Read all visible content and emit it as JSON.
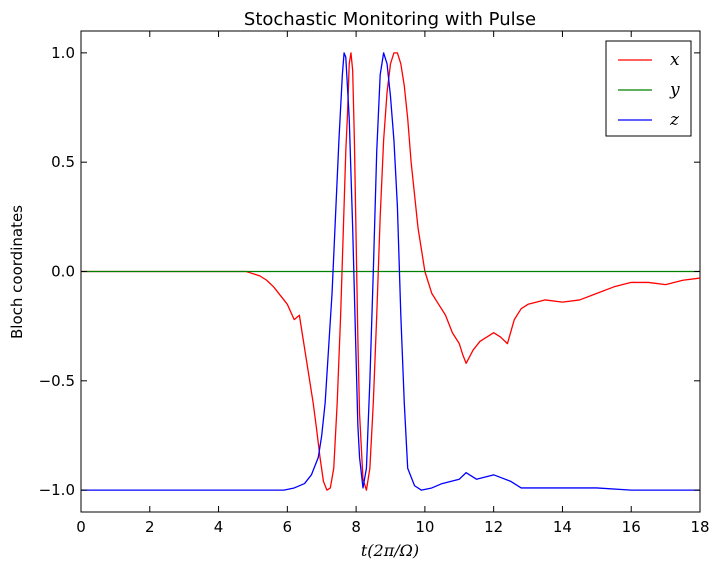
{
  "chart_data": {
    "type": "line",
    "title": "Stochastic Monitoring with Pulse",
    "xlabel": "t(2π/Ω)",
    "ylabel": "Bloch coordinates",
    "xlim": [
      0,
      18
    ],
    "ylim": [
      -1.1,
      1.1
    ],
    "xticks": [
      0,
      2,
      4,
      6,
      8,
      10,
      12,
      14,
      16,
      18
    ],
    "xtick_labels": [
      "0",
      "2",
      "4",
      "6",
      "8",
      "10",
      "12",
      "14",
      "16",
      "18"
    ],
    "yticks": [
      -1.0,
      -0.5,
      0.0,
      0.5,
      1.0
    ],
    "ytick_labels": [
      "−1.0",
      "−0.5",
      "0.0",
      "0.5",
      "1.0"
    ],
    "grid": false,
    "legend_position": "top-right",
    "series": [
      {
        "name": "x",
        "color": "#ff0000",
        "x": [
          0,
          1,
          2,
          3,
          4,
          4.8,
          5.0,
          5.2,
          5.4,
          5.6,
          5.8,
          6.0,
          6.2,
          6.35,
          6.45,
          6.6,
          6.75,
          6.85,
          6.95,
          7.05,
          7.15,
          7.25,
          7.35,
          7.45,
          7.55,
          7.65,
          7.7,
          7.75,
          7.8,
          7.85,
          7.9,
          7.95,
          8.0,
          8.05,
          8.1,
          8.2,
          8.3,
          8.4,
          8.5,
          8.6,
          8.7,
          8.8,
          8.9,
          9.0,
          9.1,
          9.2,
          9.3,
          9.4,
          9.5,
          9.6,
          9.7,
          9.8,
          9.9,
          10.0,
          10.2,
          10.4,
          10.6,
          10.8,
          11.0,
          11.1,
          11.2,
          11.4,
          11.6,
          11.8,
          12.0,
          12.2,
          12.4,
          12.6,
          12.8,
          13.0,
          13.5,
          14.0,
          14.5,
          15.0,
          15.5,
          16.0,
          16.5,
          17.0,
          17.5,
          18.0
        ],
        "y": [
          0.0,
          0.0,
          0.0,
          0.0,
          0.0,
          0.0,
          -0.01,
          -0.02,
          -0.04,
          -0.07,
          -0.11,
          -0.15,
          -0.22,
          -0.2,
          -0.3,
          -0.45,
          -0.6,
          -0.72,
          -0.85,
          -0.96,
          -1.0,
          -0.99,
          -0.9,
          -0.6,
          -0.2,
          0.3,
          0.55,
          0.72,
          0.95,
          1.0,
          0.92,
          0.6,
          0.15,
          -0.3,
          -0.65,
          -0.95,
          -1.0,
          -0.9,
          -0.6,
          -0.2,
          0.25,
          0.6,
          0.82,
          0.95,
          1.0,
          1.0,
          0.95,
          0.85,
          0.7,
          0.5,
          0.35,
          0.2,
          0.1,
          0.0,
          -0.1,
          -0.15,
          -0.2,
          -0.28,
          -0.33,
          -0.38,
          -0.42,
          -0.36,
          -0.32,
          -0.3,
          -0.28,
          -0.3,
          -0.33,
          -0.22,
          -0.17,
          -0.15,
          -0.13,
          -0.14,
          -0.13,
          -0.1,
          -0.07,
          -0.05,
          -0.05,
          -0.06,
          -0.04,
          -0.03
        ]
      },
      {
        "name": "y",
        "color": "#008000",
        "x": [
          0,
          18
        ],
        "y": [
          0.0,
          0.0
        ]
      },
      {
        "name": "z",
        "color": "#0000ff",
        "x": [
          0,
          1,
          2,
          3,
          4,
          5,
          5.5,
          5.9,
          6.2,
          6.5,
          6.7,
          6.9,
          7.0,
          7.1,
          7.2,
          7.3,
          7.4,
          7.5,
          7.6,
          7.65,
          7.7,
          7.8,
          7.9,
          8.0,
          8.05,
          8.1,
          8.2,
          8.3,
          8.4,
          8.5,
          8.6,
          8.7,
          8.8,
          8.9,
          9.0,
          9.1,
          9.2,
          9.3,
          9.4,
          9.5,
          9.7,
          9.9,
          10.2,
          10.5,
          11.0,
          11.2,
          11.5,
          12.0,
          12.5,
          12.8,
          13.0,
          14.0,
          15.0,
          16.0,
          17.0,
          18.0
        ],
        "y": [
          -1.0,
          -1.0,
          -1.0,
          -1.0,
          -1.0,
          -1.0,
          -1.0,
          -1.0,
          -0.99,
          -0.97,
          -0.93,
          -0.85,
          -0.75,
          -0.6,
          -0.35,
          -0.1,
          0.25,
          0.6,
          0.9,
          1.0,
          0.98,
          0.7,
          0.2,
          -0.4,
          -0.7,
          -0.85,
          -0.99,
          -0.9,
          -0.5,
          0.0,
          0.55,
          0.9,
          1.0,
          0.95,
          0.8,
          0.6,
          0.3,
          -0.2,
          -0.6,
          -0.9,
          -0.98,
          -1.0,
          -0.99,
          -0.97,
          -0.95,
          -0.92,
          -0.95,
          -0.93,
          -0.96,
          -0.99,
          -0.99,
          -0.99,
          -0.99,
          -1.0,
          -1.0,
          -1.0
        ]
      }
    ]
  }
}
